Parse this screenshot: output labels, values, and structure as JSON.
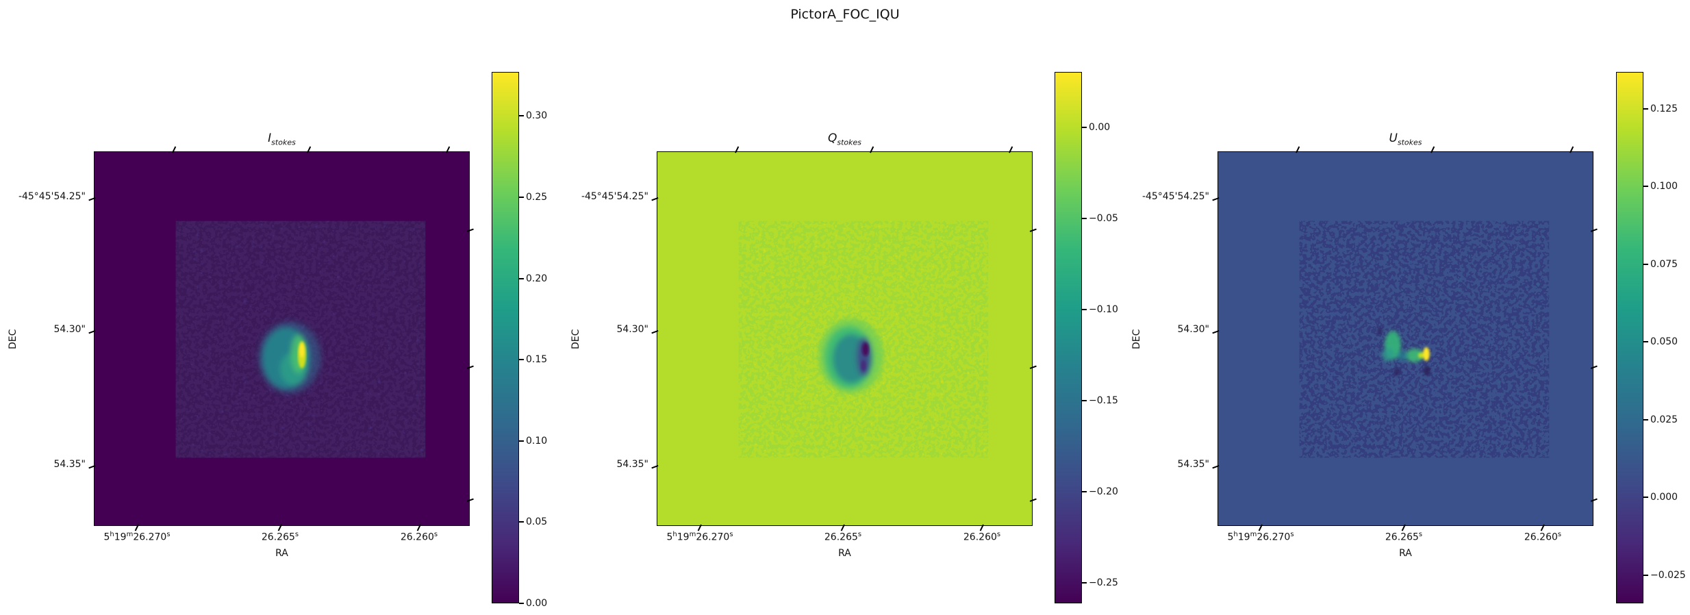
{
  "figure": {
    "title": "PictorA_FOC_IQU",
    "background_color": "#ffffff",
    "colormap": "viridis"
  },
  "axes": {
    "xlabel": "RA",
    "ylabel": "DEC",
    "dec_ticks": [
      "-45°45'54.25\"",
      "54.30\"",
      "54.35\""
    ],
    "ra_ticks": [
      {
        "segments": [
          [
            "5",
            false
          ],
          [
            "h",
            true
          ],
          [
            "19",
            false
          ],
          [
            "m",
            true
          ],
          [
            "26.270",
            false
          ],
          [
            "s",
            true
          ]
        ]
      },
      {
        "segments": [
          [
            "26.265",
            false
          ],
          [
            "s",
            true
          ]
        ]
      },
      {
        "segments": [
          [
            "26.260",
            false
          ],
          [
            "s",
            true
          ]
        ]
      }
    ]
  },
  "panels": [
    {
      "title_main": "I",
      "title_sub": "stokes",
      "colorbar_ticks": [
        "0.30",
        "0.25",
        "0.20",
        "0.15",
        "0.10",
        "0.05",
        "0.00"
      ],
      "base_color": "#440154"
    },
    {
      "title_main": "Q",
      "title_sub": "stokes",
      "colorbar_ticks": [
        "0.00",
        "−0.05",
        "−0.10",
        "−0.15",
        "−0.20",
        "−0.25"
      ],
      "base_color": "#b4dd2b"
    },
    {
      "title_main": "U",
      "title_sub": "stokes",
      "colorbar_ticks": [
        "0.125",
        "0.100",
        "0.075",
        "0.050",
        "0.025",
        "0.000",
        "−0.025"
      ],
      "base_color": "#3b518b"
    }
  ],
  "chart_data": [
    {
      "type": "heatmap",
      "title": "I_stokes",
      "xlabel": "RA",
      "ylabel": "DEC",
      "x_tick_labels": [
        "5h19m26.270s",
        "26.265s",
        "26.260s"
      ],
      "y_tick_labels": [
        "-45°45'54.25\"",
        "54.30\"",
        "54.35\""
      ],
      "colormap": "viridis",
      "colorbar_tick_values": [
        0.3,
        0.25,
        0.2,
        0.15,
        0.1,
        0.05,
        0.0
      ],
      "value_range": [
        0.0,
        0.33
      ],
      "background_level": 0.0,
      "peak_value": 0.33,
      "features": "Uniform dark-purple background (~0) outside exposed field; noisy square field of view in centre; compact bright source near RA 5h19m26.265s, DEC -45°45'54.30\" with an elongated yellow peak reaching ~0.33"
    },
    {
      "type": "heatmap",
      "title": "Q_stokes",
      "xlabel": "RA",
      "ylabel": "DEC",
      "x_tick_labels": [
        "5h19m26.270s",
        "26.265s",
        "26.260s"
      ],
      "y_tick_labels": [
        "-45°45'54.25\"",
        "54.30\"",
        "54.35\""
      ],
      "colormap": "viridis",
      "colorbar_tick_values": [
        0.0,
        -0.05,
        -0.1,
        -0.15,
        -0.2,
        -0.25
      ],
      "value_range": [
        -0.26,
        0.03
      ],
      "background_level": 0.0,
      "peak_value": -0.26,
      "features": "Yellow-green background near 0; noisy square field of view; central negative-Q blob (teal) with a dark vertical minimum reaching ~-0.26 at the source position"
    },
    {
      "type": "heatmap",
      "title": "U_stokes",
      "xlabel": "RA",
      "ylabel": "DEC",
      "x_tick_labels": [
        "5h19m26.270s",
        "26.265s",
        "26.260s"
      ],
      "y_tick_labels": [
        "-45°45'54.25\"",
        "54.30\"",
        "54.35\""
      ],
      "colormap": "viridis",
      "colorbar_tick_values": [
        0.125,
        0.1,
        0.075,
        0.05,
        0.025,
        0.0,
        -0.025
      ],
      "value_range": [
        -0.035,
        0.135
      ],
      "background_level": 0.01,
      "peak_value": 0.135,
      "features": "Slate-blue background near 0; noisy square field of view with scattered dark pixels; small green patches and a compact yellow positive-U peak (~0.135) at the source position"
    }
  ]
}
